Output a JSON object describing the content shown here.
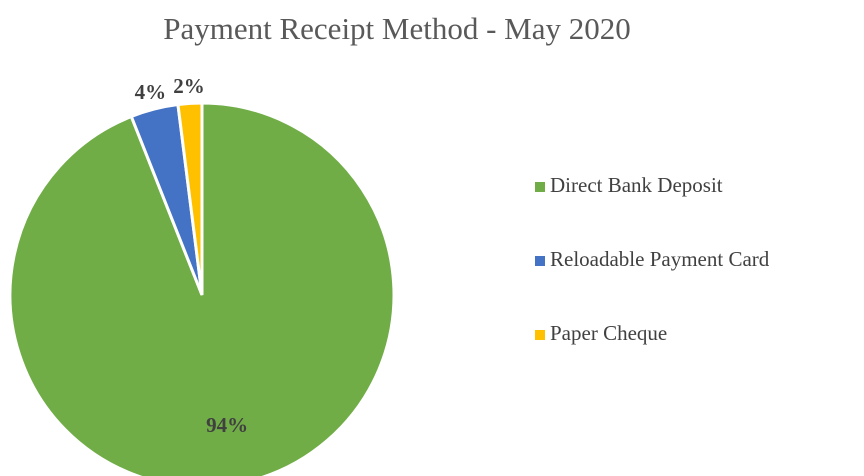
{
  "chart_data": {
    "type": "pie",
    "title": "Payment Receipt Method - May 2020",
    "categories": [
      "Direct Bank Deposit",
      "Reloadable Payment Card",
      "Paper Cheque"
    ],
    "values": [
      94,
      4,
      2
    ],
    "value_labels": [
      "94%",
      "4%",
      "2%"
    ],
    "colors": [
      "#70ad47",
      "#4472c4",
      "#ffc000"
    ],
    "legend": "right"
  }
}
